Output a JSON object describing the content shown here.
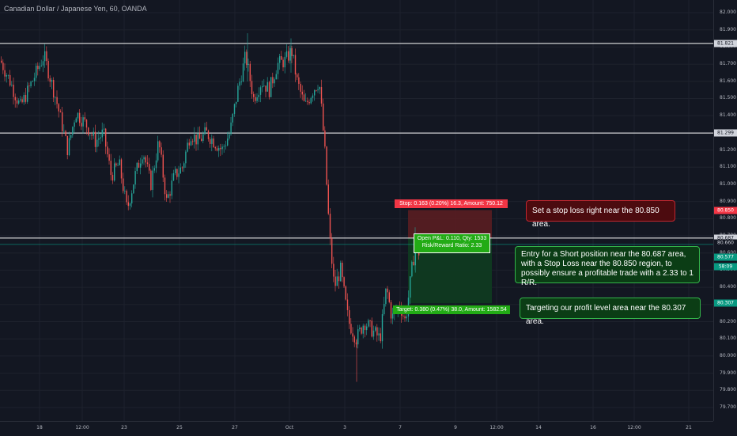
{
  "title": "Canadian Dollar / Japanese Yen, 60, OANDA",
  "colors": {
    "background": "#131722",
    "up": "#26a69a",
    "down": "#ef5350",
    "grid": "#1e222d",
    "level_line": "#ffffff",
    "stop_zone": "#5a1d21",
    "target_zone": "#0f3a21",
    "entry_line": "#089981"
  },
  "price_axis": {
    "ticks": [
      "82.000",
      "81.900",
      "81.800",
      "81.700",
      "81.600",
      "81.500",
      "81.400",
      "81.300",
      "81.200",
      "81.100",
      "81.000",
      "80.900",
      "80.800",
      "80.700",
      "80.600",
      "80.500",
      "80.400",
      "80.300",
      "80.200",
      "80.100",
      "80.000",
      "79.900",
      "79.800",
      "79.700"
    ],
    "tags": [
      {
        "text": "81.821",
        "style": "white"
      },
      {
        "text": "81.299",
        "style": "white"
      },
      {
        "text": "80.850",
        "style": "red"
      },
      {
        "text": "80.687",
        "style": "white"
      },
      {
        "text": "80.660",
        "style": "dark"
      },
      {
        "text": "80.577",
        "style": "green"
      },
      {
        "text": "58:09",
        "style": "green"
      },
      {
        "text": "80.307",
        "style": "green"
      }
    ]
  },
  "time_axis": {
    "ticks": [
      "18",
      "12:00",
      "23",
      "25",
      "27",
      "Oct",
      "3",
      "7",
      "9",
      "12:00",
      "14",
      "16",
      "12:00",
      "21"
    ]
  },
  "position": {
    "stop_label": "Stop: 0.163 (0.20%) 16.3, Amount: 750.12",
    "target_label": "Target: 0.380 (0.47%) 38.0, Amount: 1582.54",
    "pnl_line1": "Open P&L: 0.110, Qty: 1533",
    "pnl_line2": "Risk/Reward Ratio: 2.33"
  },
  "annotations": {
    "stop": "Set a stop loss right near the 80.850 area.",
    "entry": "Entry for a Short position near the 80.687 area, with a Stop Loss near the 80.850 region, to possibly ensure a profitable trade with a 2.33 to 1 R/R.",
    "target": "Targeting our profit level area near the 80.307 area."
  },
  "chart_data": {
    "type": "candlestick",
    "title": "Canadian Dollar / Japanese Yen, 60, OANDA",
    "symbol": "CAD/JPY",
    "interval": "60",
    "source": "OANDA",
    "ylim": [
      79.65,
      82.05
    ],
    "x_labels": [
      "18",
      "12:00",
      "23",
      "25",
      "27",
      "Oct",
      "3",
      "7",
      "9",
      "12:00",
      "14",
      "16",
      "12:00",
      "21"
    ],
    "horizontal_levels": [
      81.821,
      81.299,
      80.687
    ],
    "entry": 80.687,
    "stop": 80.85,
    "target": 80.307,
    "last_price": 80.577,
    "close_path": [
      [
        0,
        81.72
      ],
      [
        12,
        81.6
      ],
      [
        25,
        81.45
      ],
      [
        40,
        81.6
      ],
      [
        55,
        81.75
      ],
      [
        70,
        81.5
      ],
      [
        85,
        81.2
      ],
      [
        95,
        81.42
      ],
      [
        108,
        81.35
      ],
      [
        120,
        81.25
      ],
      [
        130,
        81.3
      ],
      [
        140,
        81.05
      ],
      [
        150,
        81.12
      ],
      [
        160,
        80.85
      ],
      [
        170,
        81.05
      ],
      [
        180,
        81.2
      ],
      [
        190,
        81.0
      ],
      [
        200,
        81.25
      ],
      [
        210,
        80.9
      ],
      [
        220,
        81.05
      ],
      [
        230,
        81.1
      ],
      [
        240,
        81.3
      ],
      [
        250,
        81.25
      ],
      [
        260,
        81.3
      ],
      [
        270,
        81.25
      ],
      [
        280,
        81.2
      ],
      [
        290,
        81.3
      ],
      [
        300,
        81.55
      ],
      [
        310,
        81.75
      ],
      [
        320,
        81.5
      ],
      [
        330,
        81.6
      ],
      [
        340,
        81.55
      ],
      [
        350,
        81.7
      ],
      [
        360,
        81.72
      ],
      [
        368,
        81.78
      ],
      [
        375,
        81.6
      ],
      [
        385,
        81.45
      ],
      [
        395,
        81.55
      ],
      [
        403,
        81.6
      ],
      [
        410,
        81.2
      ],
      [
        416,
        80.7
      ],
      [
        422,
        80.4
      ],
      [
        430,
        80.5
      ],
      [
        440,
        80.2
      ],
      [
        450,
        80.1
      ],
      [
        460,
        80.2
      ],
      [
        470,
        80.15
      ],
      [
        480,
        80.1
      ],
      [
        488,
        80.4
      ],
      [
        495,
        80.22
      ],
      [
        505,
        80.3
      ],
      [
        512,
        80.2
      ],
      [
        520,
        80.5
      ],
      [
        526,
        80.68
      ],
      [
        530,
        80.58
      ]
    ]
  }
}
